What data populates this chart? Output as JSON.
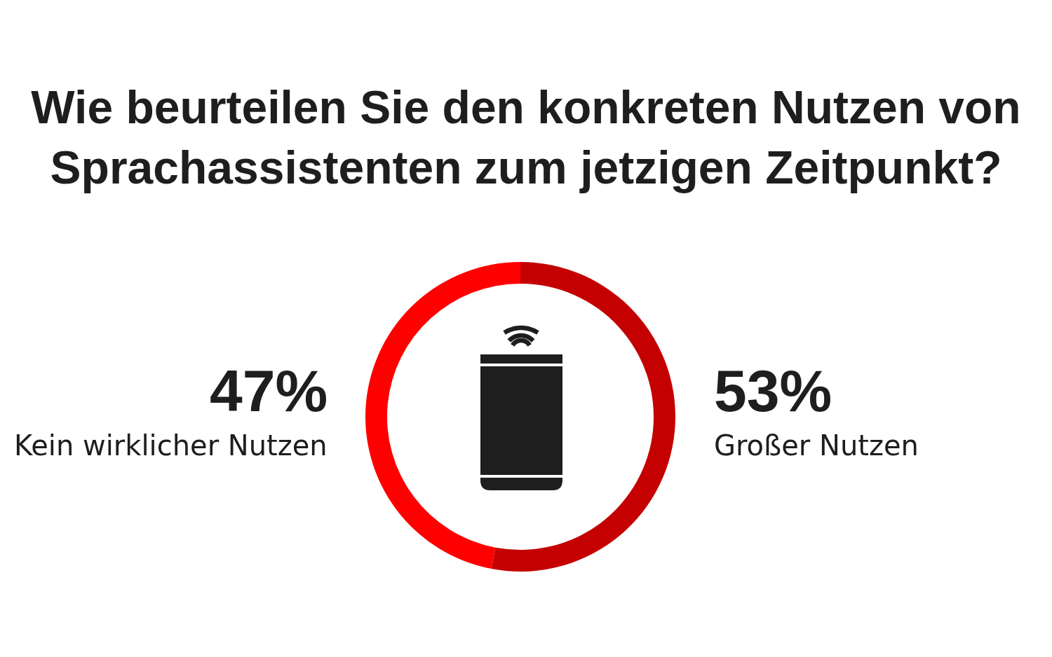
{
  "chart_data": {
    "type": "donut",
    "title": "Wie beurteilen Sie den konkreten Nutzen von Sprachassistenten zum jetzigen Zeitpunkt?",
    "categories": [
      "Großer Nutzen",
      "Kein wirklicher Nutzen"
    ],
    "values": [
      53,
      47
    ],
    "colors": [
      "#c40000",
      "#ff0000"
    ],
    "value_labels": [
      "53%",
      "47%"
    ],
    "legend": false
  }
}
